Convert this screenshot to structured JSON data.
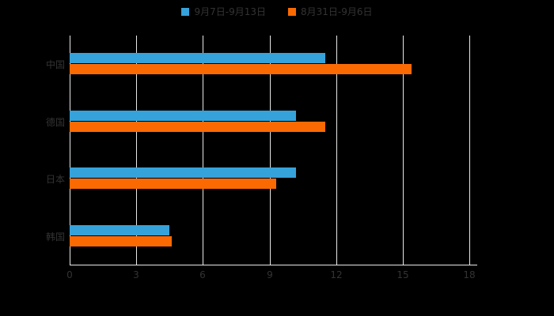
{
  "chart_data": {
    "type": "bar",
    "orientation": "horizontal",
    "title": "",
    "categories": [
      "中国",
      "德国",
      "日本",
      "韩国"
    ],
    "series": [
      {
        "name": "9月7日-9月13日",
        "color": "#36A2DA",
        "values": [
          11.5,
          10.2,
          10.2,
          4.5
        ]
      },
      {
        "name": "8月31日-9月6日",
        "color": "#FB6A02",
        "values": [
          15.4,
          11.5,
          9.3,
          4.6
        ]
      }
    ],
    "xlim": [
      0,
      18
    ],
    "xticks": [
      0,
      3,
      6,
      9,
      12,
      15,
      18
    ],
    "xlabel": "",
    "ylabel": "",
    "grid": true,
    "legend_position": "top",
    "background_color": "#000000",
    "text_color": "#333333",
    "gridline_color": "#e8e8e8"
  }
}
